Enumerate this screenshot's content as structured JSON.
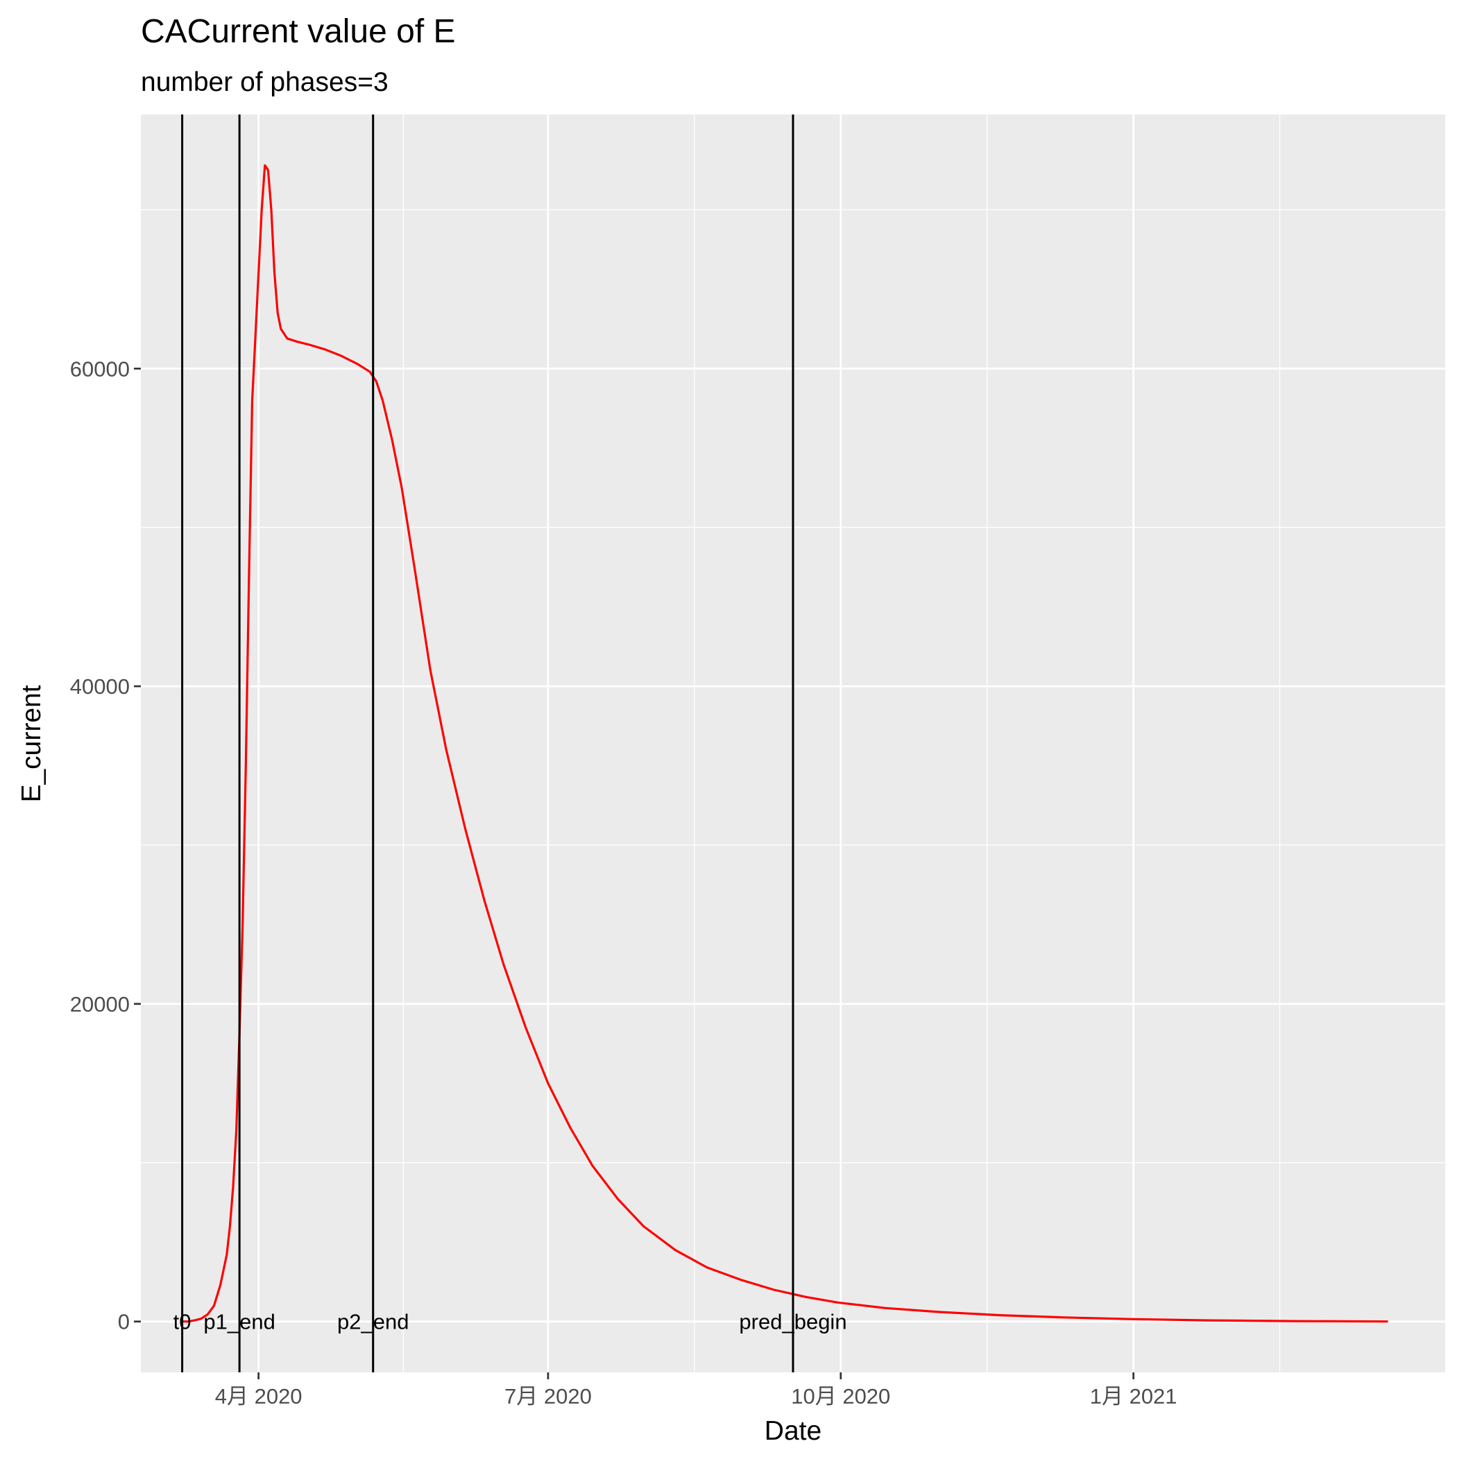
{
  "chart_data": {
    "type": "line",
    "title": "CACurrent value of E",
    "subtitle": "number of phases=3",
    "xlabel": "Date",
    "ylabel": "E_current",
    "x_ticks": [
      {
        "date": "2020-04-01",
        "label": "4月 2020"
      },
      {
        "date": "2020-07-01",
        "label": "7月 2020"
      },
      {
        "date": "2020-10-01",
        "label": "10月 2020"
      },
      {
        "date": "2021-01-01",
        "label": "1月 2021"
      }
    ],
    "y_ticks": [
      0,
      20000,
      40000,
      60000
    ],
    "xlim": [
      "2020-02-24",
      "2021-04-09"
    ],
    "ylim": [
      -3200,
      76000
    ],
    "grid": true,
    "series": [
      {
        "color": "#ff0000",
        "points": [
          [
            "2020-03-08",
            0
          ],
          [
            "2020-03-10",
            0
          ],
          [
            "2020-03-12",
            80
          ],
          [
            "2020-03-14",
            180
          ],
          [
            "2020-03-16",
            450
          ],
          [
            "2020-03-18",
            1000
          ],
          [
            "2020-03-20",
            2300
          ],
          [
            "2020-03-22",
            4200
          ],
          [
            "2020-03-23",
            6000
          ],
          [
            "2020-03-24",
            8500
          ],
          [
            "2020-03-25",
            12000
          ],
          [
            "2020-03-26",
            18000
          ],
          [
            "2020-03-27",
            25000
          ],
          [
            "2020-03-28",
            35000
          ],
          [
            "2020-03-29",
            47000
          ],
          [
            "2020-03-30",
            58000
          ],
          [
            "2020-03-31",
            62000
          ],
          [
            "2020-04-02",
            70000
          ],
          [
            "2020-04-03",
            72800
          ],
          [
            "2020-04-04",
            72500
          ],
          [
            "2020-04-05",
            70000
          ],
          [
            "2020-04-06",
            66000
          ],
          [
            "2020-04-07",
            63500
          ],
          [
            "2020-04-08",
            62500
          ],
          [
            "2020-04-10",
            61900
          ],
          [
            "2020-04-13",
            61700
          ],
          [
            "2020-04-17",
            61500
          ],
          [
            "2020-04-22",
            61200
          ],
          [
            "2020-04-27",
            60800
          ],
          [
            "2020-05-02",
            60300
          ],
          [
            "2020-05-06",
            59800
          ],
          [
            "2020-05-08",
            59200
          ],
          [
            "2020-05-10",
            58000
          ],
          [
            "2020-05-13",
            55500
          ],
          [
            "2020-05-16",
            52500
          ],
          [
            "2020-05-20",
            47500
          ],
          [
            "2020-05-25",
            41000
          ],
          [
            "2020-05-30",
            36000
          ],
          [
            "2020-06-05",
            31000
          ],
          [
            "2020-06-11",
            26500
          ],
          [
            "2020-06-17",
            22500
          ],
          [
            "2020-06-24",
            18500
          ],
          [
            "2020-07-01",
            15000
          ],
          [
            "2020-07-08",
            12200
          ],
          [
            "2020-07-15",
            9800
          ],
          [
            "2020-07-23",
            7700
          ],
          [
            "2020-07-31",
            6000
          ],
          [
            "2020-08-10",
            4500
          ],
          [
            "2020-08-20",
            3400
          ],
          [
            "2020-08-31",
            2600
          ],
          [
            "2020-09-10",
            2000
          ],
          [
            "2020-09-20",
            1550
          ],
          [
            "2020-09-30",
            1200
          ],
          [
            "2020-10-15",
            850
          ],
          [
            "2020-11-01",
            600
          ],
          [
            "2020-11-20",
            400
          ],
          [
            "2020-12-10",
            260
          ],
          [
            "2021-01-01",
            150
          ],
          [
            "2021-01-25",
            70
          ],
          [
            "2021-02-20",
            30
          ],
          [
            "2021-03-22",
            0
          ]
        ]
      }
    ],
    "vlines": [
      {
        "date": "2020-03-08",
        "label": "t0"
      },
      {
        "date": "2020-03-26",
        "label": "p1_end"
      },
      {
        "date": "2020-05-07",
        "label": "p2_end"
      },
      {
        "date": "2020-09-16",
        "label": "pred_begin"
      }
    ]
  }
}
